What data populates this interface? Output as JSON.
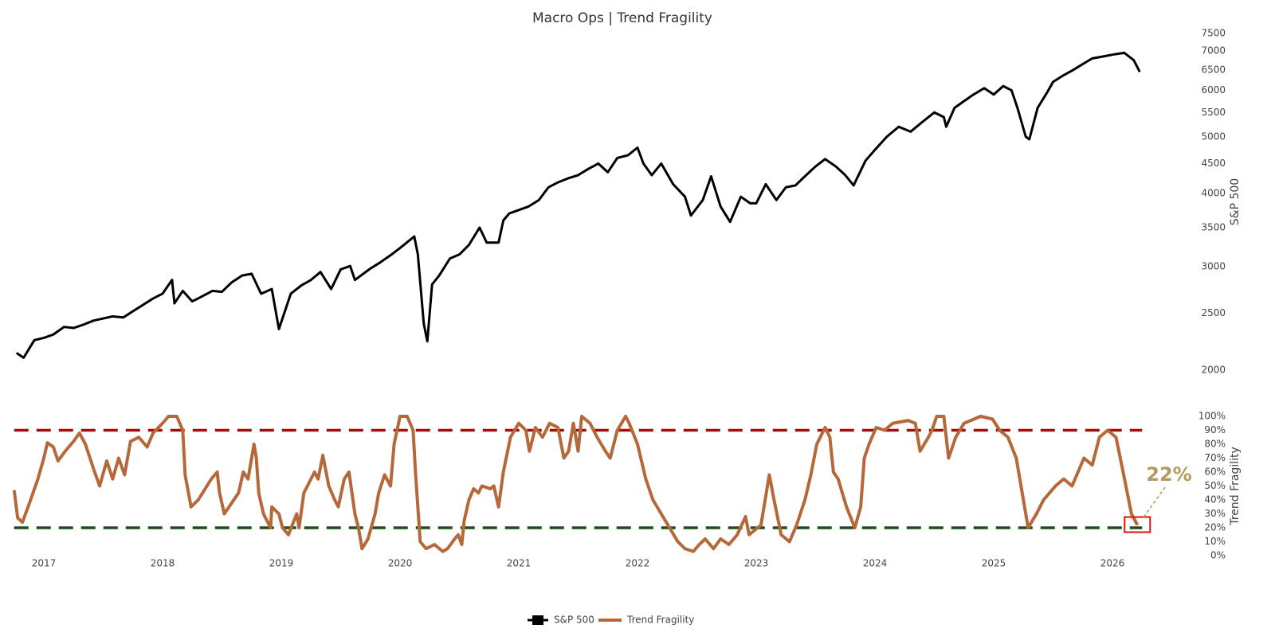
{
  "chart_data": [
    {
      "type": "line",
      "title": "Macro Ops | Trend Fragility",
      "y_axis_title": "S&P 500",
      "log_y": true,
      "grid": false,
      "xlim": [
        2016.75,
        2026.25
      ],
      "ylim": [
        2000,
        7500
      ],
      "yticks": [
        2000,
        2500,
        3000,
        3500,
        4000,
        4500,
        5000,
        5500,
        6000,
        6500,
        7000,
        7500
      ],
      "x": [
        2016.77,
        2016.83,
        2016.92,
        2017.0,
        2017.08,
        2017.17,
        2017.25,
        2017.33,
        2017.42,
        2017.5,
        2017.58,
        2017.67,
        2017.75,
        2017.83,
        2017.92,
        2018.0,
        2018.08,
        2018.1,
        2018.17,
        2018.25,
        2018.33,
        2018.42,
        2018.5,
        2018.58,
        2018.67,
        2018.75,
        2018.83,
        2018.92,
        2018.98,
        2019.08,
        2019.17,
        2019.25,
        2019.33,
        2019.42,
        2019.5,
        2019.58,
        2019.62,
        2019.75,
        2019.83,
        2019.92,
        2020.0,
        2020.12,
        2020.15,
        2020.2,
        2020.23,
        2020.27,
        2020.33,
        2020.42,
        2020.5,
        2020.58,
        2020.67,
        2020.73,
        2020.83,
        2020.87,
        2020.92,
        2021.0,
        2021.08,
        2021.17,
        2021.25,
        2021.33,
        2021.42,
        2021.5,
        2021.58,
        2021.67,
        2021.75,
        2021.83,
        2021.92,
        2022.0,
        2022.05,
        2022.12,
        2022.2,
        2022.3,
        2022.4,
        2022.45,
        2022.55,
        2022.62,
        2022.7,
        2022.78,
        2022.87,
        2022.95,
        2023.0,
        2023.08,
        2023.17,
        2023.25,
        2023.33,
        2023.42,
        2023.5,
        2023.58,
        2023.67,
        2023.75,
        2023.82,
        2023.92,
        2024.0,
        2024.1,
        2024.2,
        2024.3,
        2024.4,
        2024.5,
        2024.58,
        2024.6,
        2024.67,
        2024.75,
        2024.83,
        2024.92,
        2025.0,
        2025.08,
        2025.15,
        2025.2,
        2025.27,
        2025.3,
        2025.37,
        2025.45,
        2025.5,
        2025.58,
        2025.67,
        2025.75,
        2025.83,
        2025.92,
        2026.0,
        2026.1,
        2026.18,
        2026.23
      ],
      "series": [
        {
          "name": "S&P 500",
          "color": "#000000",
          "values": [
            2140,
            2100,
            2250,
            2270,
            2300,
            2370,
            2360,
            2390,
            2430,
            2450,
            2470,
            2460,
            2520,
            2580,
            2650,
            2700,
            2850,
            2600,
            2730,
            2620,
            2670,
            2730,
            2720,
            2820,
            2900,
            2920,
            2700,
            2750,
            2350,
            2700,
            2790,
            2850,
            2940,
            2750,
            2970,
            3010,
            2850,
            2980,
            3050,
            3140,
            3230,
            3380,
            3150,
            2400,
            2240,
            2800,
            2900,
            3100,
            3150,
            3270,
            3500,
            3300,
            3300,
            3600,
            3700,
            3750,
            3800,
            3900,
            4100,
            4180,
            4250,
            4300,
            4400,
            4500,
            4350,
            4600,
            4650,
            4790,
            4500,
            4300,
            4500,
            4150,
            3950,
            3670,
            3900,
            4280,
            3800,
            3580,
            3950,
            3850,
            3850,
            4150,
            3900,
            4100,
            4130,
            4300,
            4450,
            4580,
            4450,
            4300,
            4130,
            4550,
            4750,
            5000,
            5200,
            5100,
            5300,
            5500,
            5400,
            5200,
            5600,
            5750,
            5900,
            6050,
            5900,
            6100,
            6000,
            5600,
            5000,
            4950,
            5600,
            5950,
            6200,
            6350,
            6500,
            6650,
            6800,
            6850,
            6900,
            6950,
            6750,
            6450
          ]
        }
      ]
    },
    {
      "type": "line",
      "y_axis_title": "Trend Fragility",
      "log_y": false,
      "grid": false,
      "annotation": "22%",
      "xlim": [
        2016.75,
        2026.25
      ],
      "ylim": [
        0,
        100
      ],
      "xticks": [
        2017,
        2018,
        2019,
        2020,
        2021,
        2022,
        2023,
        2024,
        2025,
        2026
      ],
      "yticks": [
        {
          "value": 0,
          "label": "0%"
        },
        {
          "value": 10,
          "label": "10%"
        },
        {
          "value": 20,
          "label": "20%"
        },
        {
          "value": 30,
          "label": "30%"
        },
        {
          "value": 40,
          "label": "40%"
        },
        {
          "value": 50,
          "label": "50%"
        },
        {
          "value": 60,
          "label": "60%"
        },
        {
          "value": 70,
          "label": "70%"
        },
        {
          "value": 80,
          "label": "80%"
        },
        {
          "value": 90,
          "label": "90%"
        },
        {
          "value": 100,
          "label": "100%"
        }
      ],
      "thresholds": [
        {
          "value": 90,
          "color": "#a50d0d"
        },
        {
          "value": 20,
          "color": "#1d4f1d"
        }
      ],
      "x": [
        2016.75,
        2016.78,
        2016.82,
        2016.88,
        2016.95,
        2017.0,
        2017.03,
        2017.08,
        2017.12,
        2017.18,
        2017.25,
        2017.3,
        2017.35,
        2017.42,
        2017.47,
        2017.53,
        2017.58,
        2017.63,
        2017.68,
        2017.73,
        2017.8,
        2017.87,
        2017.92,
        2018.0,
        2018.05,
        2018.12,
        2018.17,
        2018.19,
        2018.24,
        2018.3,
        2018.41,
        2018.46,
        2018.48,
        2018.52,
        2018.56,
        2018.64,
        2018.68,
        2018.72,
        2018.77,
        2018.79,
        2018.81,
        2018.85,
        2018.91,
        2018.92,
        2018.98,
        2019.01,
        2019.06,
        2019.13,
        2019.15,
        2019.19,
        2019.28,
        2019.31,
        2019.35,
        2019.4,
        2019.45,
        2019.48,
        2019.53,
        2019.57,
        2019.62,
        2019.65,
        2019.68,
        2019.73,
        2019.79,
        2019.82,
        2019.87,
        2019.92,
        2019.95,
        2020.0,
        2020.06,
        2020.11,
        2020.13,
        2020.17,
        2020.22,
        2020.29,
        2020.36,
        2020.4,
        2020.46,
        2020.49,
        2020.52,
        2020.54,
        2020.58,
        2020.62,
        2020.66,
        2020.69,
        2020.76,
        2020.79,
        2020.83,
        2020.87,
        2020.93,
        2021.0,
        2021.06,
        2021.09,
        2021.14,
        2021.2,
        2021.26,
        2021.33,
        2021.38,
        2021.42,
        2021.46,
        2021.5,
        2021.53,
        2021.6,
        2021.66,
        2021.73,
        2021.77,
        2021.83,
        2021.9,
        2021.93,
        2022.0,
        2022.07,
        2022.13,
        2022.2,
        2022.27,
        2022.34,
        2022.4,
        2022.47,
        2022.52,
        2022.57,
        2022.64,
        2022.7,
        2022.77,
        2022.84,
        2022.91,
        2022.94,
        2023.04,
        2023.11,
        2023.15,
        2023.21,
        2023.28,
        2023.34,
        2023.41,
        2023.46,
        2023.51,
        2023.58,
        2023.62,
        2023.65,
        2023.69,
        2023.76,
        2023.83,
        2023.88,
        2023.91,
        2023.95,
        2024.01,
        2024.08,
        2024.15,
        2024.28,
        2024.34,
        2024.38,
        2024.45,
        2024.48,
        2024.52,
        2024.58,
        2024.62,
        2024.68,
        2024.75,
        2024.89,
        2024.99,
        2025.05,
        2025.12,
        2025.19,
        2025.24,
        2025.29,
        2025.36,
        2025.42,
        2025.52,
        2025.59,
        2025.66,
        2025.76,
        2025.83,
        2025.89,
        2025.96,
        2026.03,
        2026.09,
        2026.16,
        2026.21
      ],
      "series": [
        {
          "name": "Trend Fragility",
          "color": "#b5693a",
          "values": [
            47,
            27,
            24,
            38,
            55,
            70,
            81,
            78,
            68,
            75,
            82,
            88,
            80,
            62,
            50,
            68,
            55,
            70,
            58,
            82,
            85,
            78,
            88,
            95,
            100,
            100,
            90,
            58,
            35,
            40,
            55,
            60,
            45,
            30,
            35,
            45,
            60,
            55,
            80,
            70,
            45,
            30,
            20,
            35,
            30,
            20,
            15,
            30,
            20,
            45,
            60,
            55,
            72,
            50,
            40,
            35,
            55,
            60,
            30,
            20,
            5,
            12,
            30,
            45,
            58,
            50,
            80,
            100,
            100,
            90,
            60,
            10,
            5,
            8,
            3,
            5,
            12,
            15,
            8,
            25,
            40,
            48,
            45,
            50,
            48,
            50,
            35,
            60,
            85,
            95,
            90,
            75,
            92,
            85,
            95,
            92,
            70,
            75,
            95,
            75,
            100,
            95,
            85,
            75,
            70,
            90,
            100,
            95,
            80,
            55,
            40,
            30,
            20,
            10,
            5,
            3,
            8,
            12,
            5,
            12,
            8,
            15,
            28,
            15,
            22,
            58,
            40,
            15,
            10,
            22,
            40,
            58,
            80,
            92,
            85,
            60,
            55,
            35,
            20,
            35,
            70,
            80,
            92,
            90,
            95,
            97,
            95,
            75,
            85,
            90,
            100,
            100,
            70,
            85,
            95,
            100,
            98,
            90,
            85,
            70,
            45,
            20,
            30,
            40,
            50,
            55,
            50,
            70,
            65,
            85,
            90,
            85,
            60,
            30,
            22
          ]
        }
      ]
    }
  ]
}
